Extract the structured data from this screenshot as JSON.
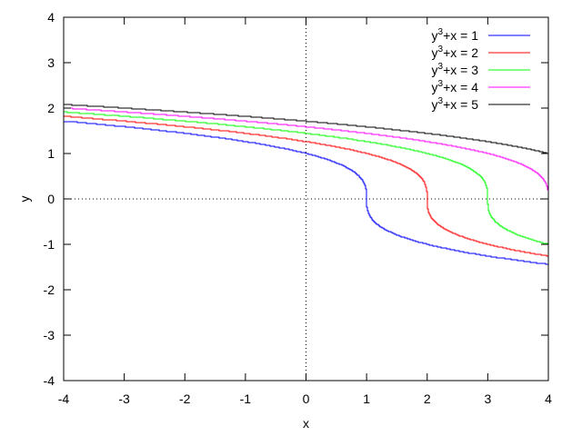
{
  "chart_data": {
    "type": "line",
    "title": "",
    "xlabel": "x",
    "ylabel": "y",
    "xlim": [
      -4,
      4
    ],
    "ylim": [
      -4,
      4
    ],
    "xticks": [
      -4,
      -3,
      -2,
      -1,
      0,
      1,
      2,
      3,
      4
    ],
    "yticks": [
      -4,
      -3,
      -2,
      -1,
      0,
      1,
      2,
      3,
      4
    ],
    "zero_axes": "dotted",
    "grid": false,
    "legend_position": "top-right",
    "series": [
      {
        "name": "y3+x = 1",
        "legend_base": "y",
        "legend_sup": "3",
        "legend_rest": "+x = 1",
        "c": 1,
        "color": "#0000ff",
        "x": [
          -4,
          -3,
          -2,
          -1,
          0,
          0.5,
          0.875,
          0.97,
          1,
          1.03,
          1.125,
          1.5,
          2,
          3,
          4
        ],
        "y": [
          1.71,
          1.587,
          1.442,
          1.26,
          1,
          0.794,
          0.5,
          0.31,
          0,
          -0.31,
          -0.5,
          -0.794,
          -1,
          -1.26,
          -1.442
        ]
      },
      {
        "name": "y3+x = 2",
        "legend_base": "y",
        "legend_sup": "3",
        "legend_rest": "+x = 2",
        "c": 2,
        "color": "#ff0000",
        "x": [
          -4,
          -3,
          -2,
          -1,
          0,
          1,
          1.5,
          1.875,
          1.97,
          2,
          2.03,
          2.125,
          2.5,
          3,
          4
        ],
        "y": [
          1.817,
          1.71,
          1.587,
          1.442,
          1.26,
          1,
          0.794,
          0.5,
          0.31,
          0,
          -0.31,
          -0.5,
          -0.794,
          -1,
          -1.26
        ]
      },
      {
        "name": "y3+x = 3",
        "legend_base": "y",
        "legend_sup": "3",
        "legend_rest": "+x = 3",
        "c": 3,
        "color": "#00ff00",
        "x": [
          -4,
          -3,
          -2,
          -1,
          0,
          1,
          2,
          2.5,
          2.875,
          2.97,
          3,
          3.03,
          3.125,
          3.5,
          4
        ],
        "y": [
          1.913,
          1.817,
          1.71,
          1.587,
          1.442,
          1.26,
          1,
          0.794,
          0.5,
          0.31,
          0,
          -0.31,
          -0.5,
          -0.794,
          -1
        ]
      },
      {
        "name": "y3+x = 4",
        "legend_base": "y",
        "legend_sup": "3",
        "legend_rest": "+x = 4",
        "c": 4,
        "color": "#ff00ff",
        "x": [
          -4,
          -3,
          -2,
          -1,
          0,
          1,
          2,
          3,
          3.5,
          3.875,
          3.97,
          4
        ],
        "y": [
          2,
          1.913,
          1.817,
          1.71,
          1.587,
          1.442,
          1.26,
          1,
          0.794,
          0.5,
          0.31,
          0
        ]
      },
      {
        "name": "y3+x = 5",
        "legend_base": "y",
        "legend_sup": "3",
        "legend_rest": "+x = 5",
        "c": 5,
        "color": "#000000",
        "x": [
          -4,
          -3,
          -2,
          -1,
          0,
          1,
          2,
          3,
          4
        ],
        "y": [
          2.08,
          2,
          1.913,
          1.817,
          1.71,
          1.587,
          1.442,
          1.26,
          1
        ]
      }
    ]
  }
}
